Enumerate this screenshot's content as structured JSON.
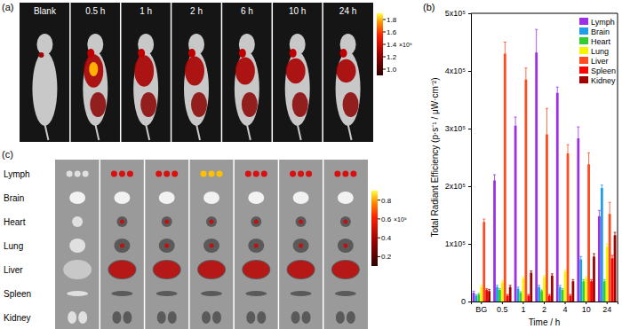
{
  "figure": {
    "panel_a": {
      "label": "(a)",
      "columns": [
        "Blank",
        "0.5 h",
        "1 h",
        "2 h",
        "6 h",
        "10 h",
        "24 h"
      ],
      "colorbar": {
        "range": [
          0.9,
          1.9
        ],
        "ticks": [
          {
            "value": 1,
            "label": "1.0"
          },
          1.2,
          1.4,
          1.6,
          1.8
        ],
        "label": "×10⁹"
      }
    },
    "panel_b": {
      "label": "(b)"
    },
    "panel_c": {
      "label": "(c)",
      "rows": [
        "Lymph",
        "Brain",
        "Heart",
        "Lung",
        "Liver",
        "Spleen",
        "Kidney"
      ],
      "colorbar": {
        "range": [
          0.1,
          0.9
        ],
        "ticks": [
          0.2,
          0.4,
          0.6,
          0.8
        ],
        "label": "×10⁹"
      }
    }
  },
  "chart_data": {
    "type": "bar",
    "x_label": "Time / h",
    "y_label": "Total Radiant  Efficiency (p·s⁻¹ / μW·cm⁻²)",
    "categories": [
      "BG",
      "0.5",
      "1",
      "2",
      "4",
      "10",
      "24"
    ],
    "series": [
      {
        "name": "Lymph",
        "color": "#9b30e6",
        "values": [
          15000,
          210000,
          305000,
          432000,
          362000,
          283000,
          148000
        ],
        "errors": [
          3000,
          10000,
          15000,
          40000,
          10000,
          20000,
          10000
        ]
      },
      {
        "name": "Brain",
        "color": "#1e9fe8",
        "values": [
          10000,
          25000,
          22000,
          25000,
          25000,
          73000,
          197000
        ],
        "errors": [
          2000,
          3000,
          3000,
          3000,
          3000,
          5000,
          5000
        ]
      },
      {
        "name": "Heart",
        "color": "#33cc33",
        "values": [
          12000,
          20000,
          15000,
          18000,
          20000,
          35000,
          35000
        ],
        "errors": [
          2000,
          2000,
          2000,
          2000,
          2000,
          3000,
          3000
        ]
      },
      {
        "name": "Lung",
        "color": "#f5f500",
        "values": [
          25000,
          33000,
          40000,
          42000,
          52000,
          40000,
          95000
        ],
        "errors": [
          3000,
          3000,
          3000,
          3000,
          3000,
          3000,
          5000
        ]
      },
      {
        "name": "Liver",
        "color": "#ff4b1f",
        "values": [
          138000,
          430000,
          385000,
          290000,
          257000,
          238000,
          152000
        ],
        "errors": [
          5000,
          20000,
          20000,
          45000,
          15000,
          20000,
          20000
        ]
      },
      {
        "name": "Spleen",
        "color": "#ff0000",
        "values": [
          20000,
          10000,
          10000,
          10000,
          10000,
          35000,
          75000
        ],
        "errors": [
          2000,
          2000,
          2000,
          2000,
          2000,
          3000,
          5000
        ]
      },
      {
        "name": "Kidney",
        "color": "#a00000",
        "values": [
          18000,
          25000,
          50000,
          45000,
          35000,
          78000,
          115000
        ],
        "errors": [
          3000,
          3000,
          3000,
          3000,
          3000,
          5000,
          5000
        ]
      }
    ],
    "ylim": [
      0,
      500000
    ],
    "yticks": [
      0,
      {
        "value": 100000,
        "label": "1x10⁵"
      },
      {
        "value": 200000,
        "label": "2x10⁵"
      },
      {
        "value": 300000,
        "label": "3x10⁵"
      },
      {
        "value": 400000,
        "label": "4x10⁵"
      },
      {
        "value": 500000,
        "label": "5x10⁵"
      }
    ],
    "legend": "upper right",
    "grid": false
  }
}
